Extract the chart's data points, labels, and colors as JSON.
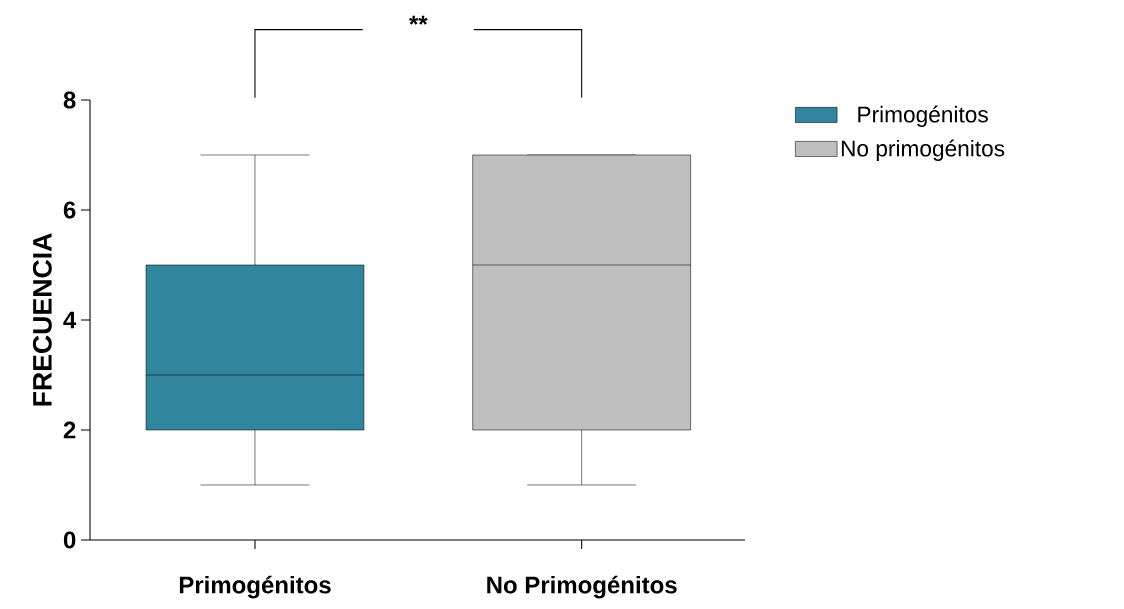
{
  "chart_data": {
    "type": "box",
    "ylabel": "FRECUENCIA",
    "categories": [
      "Primogénitos",
      "No Primogénitos"
    ],
    "ylim": [
      0,
      8
    ],
    "yticks": [
      0,
      2,
      4,
      6,
      8
    ],
    "series": [
      {
        "name": "Primogénitos",
        "color": "#31869e",
        "boxes": [
          {
            "low": 1,
            "q1": 2,
            "median": 3,
            "q3": 5,
            "high": 7
          },
          null
        ]
      },
      {
        "name": "No primogénitos",
        "color": "#bfbfbf",
        "boxes": [
          null,
          {
            "low": 1,
            "q1": 2,
            "median": 5,
            "q3": 7,
            "high": 7
          }
        ]
      }
    ],
    "legend": "right",
    "annotations": [
      "**"
    ]
  }
}
